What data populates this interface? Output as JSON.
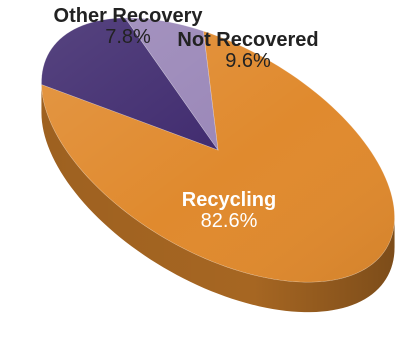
{
  "chart_data": {
    "type": "pie",
    "title": "",
    "slices": [
      {
        "label": "Recycling",
        "value": 82.6,
        "display": "82.6%",
        "color": "#E08A2E"
      },
      {
        "label": "Not Recovered",
        "value": 9.6,
        "display": "9.6%",
        "color": "#3F2A6E"
      },
      {
        "label": "Other Recovery",
        "value": 7.8,
        "display": "7.8%",
        "color": "#9A87B8"
      }
    ],
    "style": "3d-tilted",
    "legend": "none"
  }
}
